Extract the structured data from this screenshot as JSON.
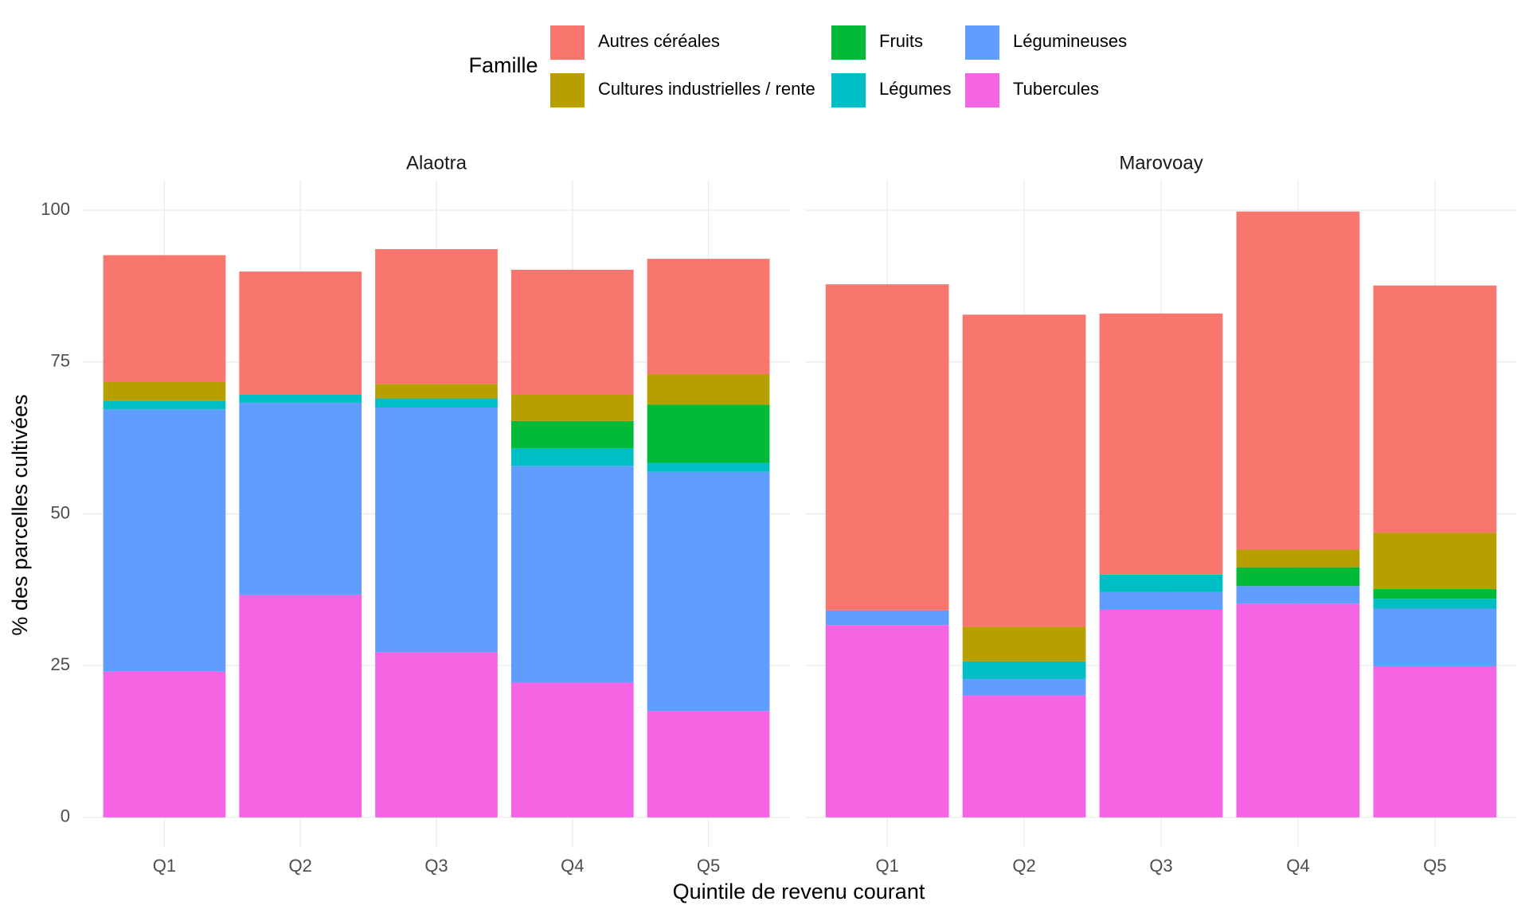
{
  "chart_data": {
    "type": "bar",
    "stacked": true,
    "legend_title": "Famille",
    "x_label": "Quintile de revenu courant",
    "y_label": "% des parcelles cultivées",
    "categories": [
      "Q1",
      "Q2",
      "Q3",
      "Q4",
      "Q5"
    ],
    "ylim": [
      -5,
      105
    ],
    "yticks": [
      0,
      25,
      50,
      75,
      100
    ],
    "grid": true,
    "series": [
      {
        "name": "Autres céréales",
        "color": "#F8766D"
      },
      {
        "name": "Cultures industrielles / rente",
        "color": "#B79F00"
      },
      {
        "name": "Fruits",
        "color": "#00BA38"
      },
      {
        "name": "Légumes",
        "color": "#00BFC4"
      },
      {
        "name": "Légumineuses",
        "color": "#619CFF"
      },
      {
        "name": "Tubercules",
        "color": "#F564E3"
      }
    ],
    "panels": [
      {
        "title": "Alaotra",
        "values": [
          [
            20.9,
            20.3,
            22.2,
            20.6,
            19.0
          ],
          [
            3.1,
            0,
            2.4,
            4.3,
            5.0
          ],
          [
            0,
            0,
            0,
            4.5,
            9.6
          ],
          [
            1.4,
            1.3,
            1.5,
            2.9,
            1.5
          ],
          [
            43.2,
            31.6,
            40.3,
            35.7,
            39.4
          ],
          [
            24.0,
            36.7,
            27.2,
            22.2,
            17.5
          ]
        ]
      },
      {
        "title": "Marovoay",
        "values": [
          [
            53.7,
            51.4,
            43.0,
            55.7,
            40.7
          ],
          [
            0,
            5.7,
            0,
            2.9,
            9.3
          ],
          [
            0,
            0,
            0,
            3.1,
            1.6
          ],
          [
            0,
            2.9,
            2.9,
            0,
            1.6
          ],
          [
            2.4,
            2.7,
            2.9,
            2.9,
            9.5
          ],
          [
            31.7,
            20.1,
            34.2,
            35.2,
            24.9
          ]
        ]
      }
    ]
  }
}
